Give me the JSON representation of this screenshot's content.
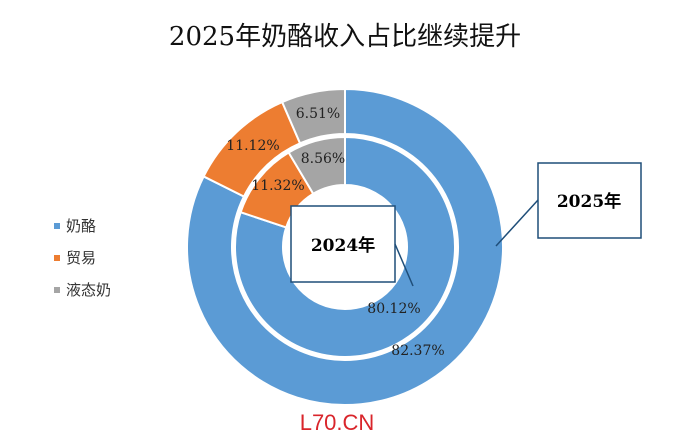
{
  "chart_data": {
    "type": "pie",
    "title": "2025年奶酪收入占比继续提升",
    "categories": [
      "奶酪",
      "贸易",
      "液态奶"
    ],
    "series": [
      {
        "name": "2025年",
        "values": [
          82.37,
          11.12,
          6.51
        ],
        "labels": [
          "82.37%",
          "11.12%",
          "6.51%"
        ]
      },
      {
        "name": "2024年",
        "values": [
          80.12,
          11.32,
          8.56
        ],
        "labels": [
          "80.12%",
          "11.32%",
          "8.56%"
        ]
      }
    ],
    "colors": [
      "#5b9bd5",
      "#ed7d31",
      "#a5a5a5"
    ],
    "legend_position": "left",
    "callouts": [
      "2025年",
      "2024年"
    ]
  },
  "watermark": "L70.CN"
}
